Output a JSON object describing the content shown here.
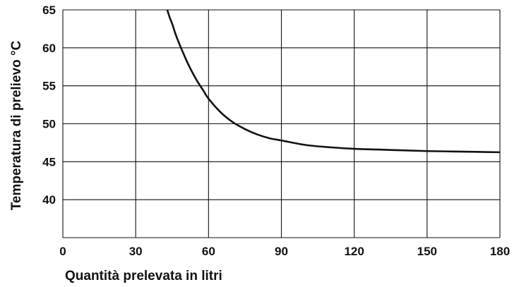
{
  "chart_data": {
    "type": "line",
    "title": "",
    "xlabel": "Quantità prelevata in litri",
    "ylabel": "Temperatura di prelievo °C",
    "xlim": [
      0,
      180
    ],
    "ylim": [
      35,
      65
    ],
    "x_ticks": [
      0,
      30,
      60,
      90,
      120,
      150,
      180
    ],
    "y_ticks": [
      40,
      45,
      50,
      55,
      60,
      65
    ],
    "x_tick_labels": [
      "0",
      "30",
      "60",
      "90",
      "120",
      "150",
      "180"
    ],
    "y_tick_labels": [
      "40",
      "45",
      "50",
      "55",
      "60",
      "65"
    ],
    "grid": true,
    "legend": "none",
    "colors": {
      "line": "#111111",
      "grid": "#111111"
    },
    "series": [
      {
        "x": [
          43,
          44,
          45,
          46,
          47,
          48,
          50,
          52,
          55,
          58,
          60,
          65,
          70,
          75,
          80,
          85,
          90,
          100,
          110,
          120,
          130,
          140,
          150,
          160,
          170,
          180
        ],
        "y": [
          65,
          64.0,
          63.2,
          62.2,
          61.3,
          60.5,
          59.0,
          57.6,
          55.8,
          54.3,
          53.3,
          51.5,
          50.2,
          49.3,
          48.6,
          48.1,
          47.8,
          47.2,
          46.9,
          46.7,
          46.6,
          46.5,
          46.4,
          46.35,
          46.3,
          46.25
        ]
      }
    ]
  }
}
